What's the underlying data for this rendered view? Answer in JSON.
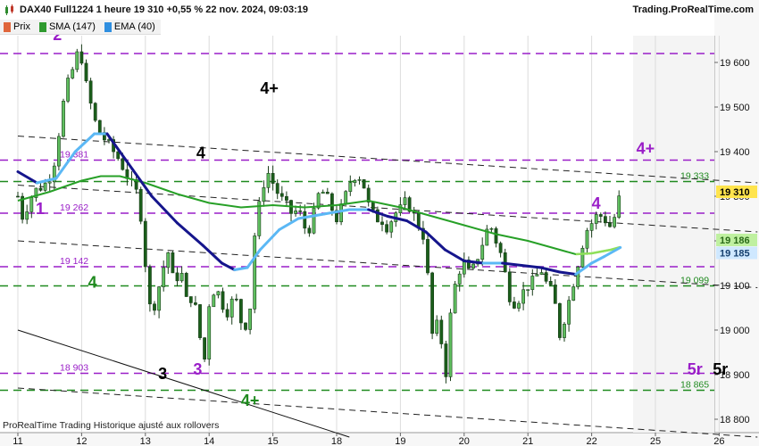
{
  "header": {
    "title": "DAX40 Full1224 1 heure 19 310 +0,55 % 22 nov. 2024, 09:03:19",
    "brand": "Trading.ProRealTime.com",
    "legend": [
      {
        "label": "Prix",
        "color": "#e0663c"
      },
      {
        "label": "SMA (147)",
        "color": "#2f9a2f"
      },
      {
        "label": "EMA (40)",
        "color": "#2f8fe0"
      }
    ]
  },
  "footer": {
    "note": "ProRealTime Trading  Historique ajusté aux rollovers"
  },
  "colors": {
    "up": "#2e8b2e",
    "down": "#1a5e1a",
    "sma": "#27a027",
    "ema_dark": "#15158c",
    "ema_light": "#5bb8f5",
    "purple": "#9a1ec8",
    "green_level": "#1f8a1f",
    "grid": "#dcdcdc"
  },
  "chart_data": {
    "type": "candlestick",
    "instrument": "DAX40 Full1224",
    "timeframe": "1 heure",
    "ylim": [
      18770,
      19660
    ],
    "y_ticks": [
      18800,
      18900,
      19000,
      19100,
      19200,
      19300,
      19400,
      19500,
      19600
    ],
    "y_tick_labels": [
      "18 800",
      "18 900",
      "19 000",
      "19 100",
      "19 200",
      "19 300",
      "19 400",
      "19 500",
      "19 600"
    ],
    "x_tick_labels": [
      "11",
      "12",
      "13",
      "14",
      "15",
      "18",
      "19",
      "20",
      "21",
      "22",
      "25",
      "26"
    ],
    "last_price": {
      "label": "19 310",
      "value": 19310
    },
    "ema_value": {
      "label": "19 185",
      "value": 19185
    },
    "sma_value": {
      "label": "19 186",
      "value": 19186
    },
    "levels": [
      {
        "value": 19620,
        "color": "purple",
        "label": ""
      },
      {
        "value": 19381,
        "color": "purple",
        "label": "19 381"
      },
      {
        "value": 19333,
        "color": "green",
        "label": "19 333"
      },
      {
        "value": 19262,
        "color": "purple",
        "label": "19 262"
      },
      {
        "value": 19142,
        "color": "purple",
        "label": "19 142"
      },
      {
        "value": 19099,
        "color": "green",
        "label": "19 099"
      },
      {
        "value": 18903,
        "color": "purple",
        "label": "18 903"
      },
      {
        "value": 18865,
        "color": "green",
        "label": "18 865"
      }
    ],
    "annotations": [
      {
        "text": "2",
        "x": 0.55,
        "y": 19650,
        "color": "purple"
      },
      {
        "text": "1",
        "x": 0.28,
        "y": 19260,
        "color": "purple"
      },
      {
        "text": "4",
        "x": 1.1,
        "y": 19095,
        "color": "green"
      },
      {
        "text": "4+",
        "x": 3.8,
        "y": 19530,
        "color": "black"
      },
      {
        "text": "4",
        "x": 2.8,
        "y": 19385,
        "color": "black"
      },
      {
        "text": "3",
        "x": 2.2,
        "y": 18890,
        "color": "black"
      },
      {
        "text": "3",
        "x": 2.75,
        "y": 18900,
        "color": "purple"
      },
      {
        "text": "4+",
        "x": 3.5,
        "y": 18830,
        "color": "green"
      },
      {
        "text": "4+",
        "x": 9.7,
        "y": 19395,
        "color": "purple"
      },
      {
        "text": "4",
        "x": 9.0,
        "y": 19272,
        "color": "purple"
      },
      {
        "text": "5r",
        "x": 10.5,
        "y": 18900,
        "color": "purple"
      },
      {
        "text": "5r",
        "x": 10.9,
        "y": 18900,
        "color": "black"
      }
    ],
    "price_path": [
      [
        0.0,
        19300
      ],
      [
        0.08,
        19250
      ],
      [
        0.15,
        19280
      ],
      [
        0.25,
        19310
      ],
      [
        0.35,
        19320
      ],
      [
        0.45,
        19330
      ],
      [
        0.55,
        19360
      ],
      [
        0.62,
        19420
      ],
      [
        0.7,
        19500
      ],
      [
        0.8,
        19560
      ],
      [
        0.9,
        19600
      ],
      [
        0.97,
        19640
      ],
      [
        1.05,
        19560
      ],
      [
        1.12,
        19520
      ],
      [
        1.2,
        19470
      ],
      [
        1.3,
        19440
      ],
      [
        1.4,
        19420
      ],
      [
        1.5,
        19400
      ],
      [
        1.6,
        19380
      ],
      [
        1.7,
        19350
      ],
      [
        1.8,
        19320
      ],
      [
        1.9,
        19300
      ],
      [
        2.0,
        19150
      ],
      [
        2.08,
        19040
      ],
      [
        2.15,
        19060
      ],
      [
        2.25,
        19120
      ],
      [
        2.35,
        19180
      ],
      [
        2.45,
        19100
      ],
      [
        2.55,
        19140
      ],
      [
        2.65,
        19060
      ],
      [
        2.75,
        19080
      ],
      [
        2.85,
        18990
      ],
      [
        2.92,
        18920
      ],
      [
        3.0,
        19060
      ],
      [
        3.1,
        19100
      ],
      [
        3.2,
        19060
      ],
      [
        3.3,
        19040
      ],
      [
        3.4,
        19080
      ],
      [
        3.5,
        19020
      ],
      [
        3.6,
        19010
      ],
      [
        3.65,
        19060
      ],
      [
        3.7,
        19200
      ],
      [
        3.8,
        19290
      ],
      [
        3.9,
        19360
      ],
      [
        4.0,
        19330
      ],
      [
        4.1,
        19300
      ],
      [
        4.2,
        19280
      ],
      [
        4.3,
        19260
      ],
      [
        4.4,
        19270
      ],
      [
        4.5,
        19230
      ],
      [
        4.6,
        19230
      ],
      [
        4.7,
        19300
      ],
      [
        4.8,
        19310
      ],
      [
        4.9,
        19280
      ],
      [
        5.0,
        19250
      ],
      [
        5.1,
        19280
      ],
      [
        5.2,
        19330
      ],
      [
        5.3,
        19350
      ],
      [
        5.4,
        19340
      ],
      [
        5.5,
        19280
      ],
      [
        5.6,
        19250
      ],
      [
        5.7,
        19250
      ],
      [
        5.8,
        19230
      ],
      [
        5.9,
        19260
      ],
      [
        6.0,
        19270
      ],
      [
        6.1,
        19290
      ],
      [
        6.2,
        19260
      ],
      [
        6.3,
        19230
      ],
      [
        6.4,
        19200
      ],
      [
        6.45,
        19060
      ],
      [
        6.5,
        18990
      ],
      [
        6.55,
        19020
      ],
      [
        6.65,
        18970
      ],
      [
        6.72,
        18900
      ],
      [
        6.8,
        19060
      ],
      [
        6.9,
        19130
      ],
      [
        7.0,
        19150
      ],
      [
        7.1,
        19120
      ],
      [
        7.2,
        19160
      ],
      [
        7.3,
        19200
      ],
      [
        7.4,
        19240
      ],
      [
        7.5,
        19200
      ],
      [
        7.6,
        19160
      ],
      [
        7.7,
        19080
      ],
      [
        7.8,
        19060
      ],
      [
        7.9,
        19080
      ],
      [
        8.0,
        19100
      ],
      [
        8.1,
        19110
      ],
      [
        8.2,
        19140
      ],
      [
        8.3,
        19100
      ],
      [
        8.4,
        19080
      ],
      [
        8.5,
        18990
      ],
      [
        8.6,
        19040
      ],
      [
        8.7,
        19100
      ],
      [
        8.8,
        19160
      ],
      [
        8.9,
        19220
      ],
      [
        9.0,
        19240
      ],
      [
        9.1,
        19260
      ],
      [
        9.2,
        19250
      ],
      [
        9.3,
        19230
      ],
      [
        9.4,
        19270
      ],
      [
        9.45,
        19310
      ]
    ],
    "sma_path": [
      [
        0.0,
        19290
      ],
      [
        0.5,
        19310
      ],
      [
        1.0,
        19335
      ],
      [
        1.3,
        19345
      ],
      [
        1.6,
        19345
      ],
      [
        2.0,
        19330
      ],
      [
        2.5,
        19305
      ],
      [
        3.0,
        19285
      ],
      [
        3.5,
        19275
      ],
      [
        4.0,
        19280
      ],
      [
        4.5,
        19275
      ],
      [
        5.0,
        19280
      ],
      [
        5.5,
        19290
      ],
      [
        6.0,
        19275
      ],
      [
        6.5,
        19255
      ],
      [
        7.0,
        19235
      ],
      [
        7.5,
        19215
      ],
      [
        8.0,
        19200
      ],
      [
        8.5,
        19180
      ],
      [
        8.75,
        19170
      ],
      [
        9.0,
        19172
      ],
      [
        9.3,
        19180
      ],
      [
        9.45,
        19186
      ]
    ],
    "ema_path": [
      [
        0.0,
        19355
      ],
      [
        0.3,
        19330
      ],
      [
        0.6,
        19340
      ],
      [
        0.9,
        19400
      ],
      [
        1.2,
        19440
      ],
      [
        1.4,
        19440
      ],
      [
        1.6,
        19400
      ],
      [
        1.8,
        19360
      ],
      [
        2.1,
        19300
      ],
      [
        2.5,
        19240
      ],
      [
        2.9,
        19190
      ],
      [
        3.2,
        19150
      ],
      [
        3.4,
        19135
      ],
      [
        3.6,
        19140
      ],
      [
        3.8,
        19180
      ],
      [
        4.1,
        19225
      ],
      [
        4.4,
        19250
      ],
      [
        4.8,
        19260
      ],
      [
        5.2,
        19270
      ],
      [
        5.5,
        19270
      ],
      [
        5.8,
        19255
      ],
      [
        6.1,
        19245
      ],
      [
        6.4,
        19220
      ],
      [
        6.7,
        19180
      ],
      [
        7.0,
        19155
      ],
      [
        7.3,
        19150
      ],
      [
        7.6,
        19150
      ],
      [
        7.9,
        19145
      ],
      [
        8.2,
        19140
      ],
      [
        8.5,
        19130
      ],
      [
        8.75,
        19125
      ],
      [
        9.0,
        19150
      ],
      [
        9.2,
        19165
      ],
      [
        9.45,
        19185
      ]
    ],
    "trend_lines": [
      {
        "style": "dashed",
        "color": "#222222",
        "from": [
          0.0,
          19435
        ],
        "to": [
          11.6,
          19330
        ]
      },
      {
        "style": "dashed",
        "color": "#222222",
        "from": [
          0.0,
          19325
        ],
        "to": [
          11.6,
          19220
        ]
      },
      {
        "style": "dashed",
        "color": "#222222",
        "from": [
          0.0,
          19200
        ],
        "to": [
          11.6,
          19095
        ]
      },
      {
        "style": "dashed",
        "color": "#222222",
        "from": [
          0.0,
          18870
        ],
        "to": [
          11.6,
          18760
        ]
      },
      {
        "style": "solid",
        "color": "#111111",
        "from": [
          0.0,
          19000
        ],
        "to": [
          5.2,
          18760
        ]
      }
    ]
  }
}
